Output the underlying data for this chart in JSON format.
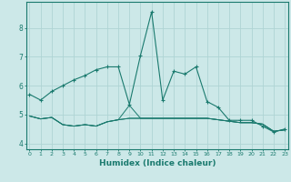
{
  "title": "",
  "xlabel": "Humidex (Indice chaleur)",
  "background_color": "#cce8e8",
  "line_color": "#1a7a6e",
  "grid_color": "#afd4d4",
  "x_values": [
    0,
    1,
    2,
    3,
    4,
    5,
    6,
    7,
    8,
    9,
    10,
    11,
    12,
    13,
    14,
    15,
    16,
    17,
    18,
    19,
    20,
    21,
    22,
    23
  ],
  "series1": [
    5.7,
    5.5,
    5.8,
    6.0,
    6.2,
    6.35,
    6.55,
    6.65,
    6.65,
    5.35,
    7.05,
    8.55,
    5.5,
    6.5,
    6.4,
    6.65,
    5.45,
    5.25,
    4.8,
    4.8,
    4.8,
    4.6,
    4.4,
    4.5
  ],
  "series2": [
    4.95,
    4.85,
    4.9,
    4.65,
    4.6,
    4.65,
    4.6,
    4.75,
    4.82,
    4.87,
    4.87,
    4.87,
    4.87,
    4.87,
    4.87,
    4.87,
    4.87,
    4.82,
    4.77,
    4.72,
    4.72,
    4.67,
    4.42,
    4.47
  ],
  "series3": [
    4.95,
    4.85,
    4.9,
    4.65,
    4.6,
    4.65,
    4.6,
    4.75,
    4.82,
    5.32,
    4.87,
    4.87,
    4.87,
    4.87,
    4.87,
    4.87,
    4.87,
    4.82,
    4.77,
    4.72,
    4.72,
    4.67,
    4.42,
    4.47
  ],
  "series4": [
    4.95,
    4.85,
    4.9,
    4.65,
    4.6,
    4.65,
    4.6,
    4.75,
    4.82,
    4.87,
    4.87,
    4.87,
    4.87,
    4.87,
    4.87,
    4.87,
    4.87,
    4.82,
    4.77,
    4.72,
    4.72,
    4.67,
    4.42,
    4.47
  ],
  "ylim": [
    3.8,
    8.9
  ],
  "yticks": [
    4,
    5,
    6,
    7,
    8
  ],
  "figsize": [
    3.2,
    2.0
  ],
  "dpi": 100
}
